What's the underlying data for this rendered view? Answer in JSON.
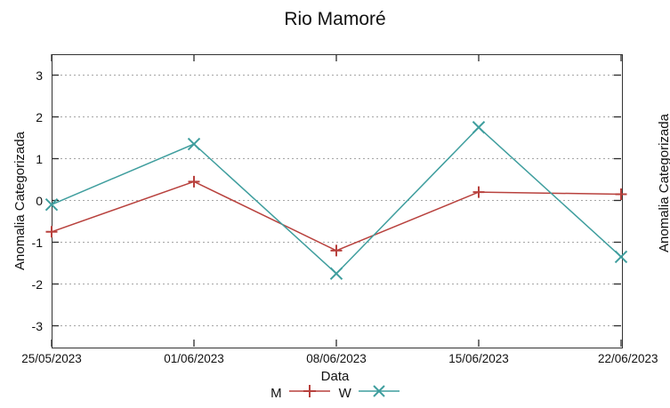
{
  "title": "Rio Mamoré",
  "chart_data": {
    "type": "line",
    "title": "Rio Mamoré",
    "xlabel": "Data",
    "ylabel": "Anomalia Categorizada",
    "categories": [
      "25/05/2023",
      "01/06/2023",
      "08/06/2023",
      "15/06/2023",
      "22/06/2023"
    ],
    "series": [
      {
        "name": "M",
        "color": "#b8413d",
        "marker": "plus",
        "values": [
          -0.75,
          0.45,
          -1.2,
          0.2,
          0.15
        ]
      },
      {
        "name": "W",
        "color": "#3f9e9e",
        "marker": "cross",
        "values": [
          -0.1,
          1.35,
          -1.75,
          1.75,
          -1.35
        ]
      }
    ],
    "ylim": [
      -3.5,
      3.5
    ],
    "yticks": [
      -3,
      -2,
      -1,
      0,
      1,
      2,
      3
    ],
    "grid": true,
    "grid_style": "dotted",
    "legend_position": "bottom-center"
  },
  "partial_right_chart": {
    "ylabel": "Anomalia Categorizada"
  }
}
